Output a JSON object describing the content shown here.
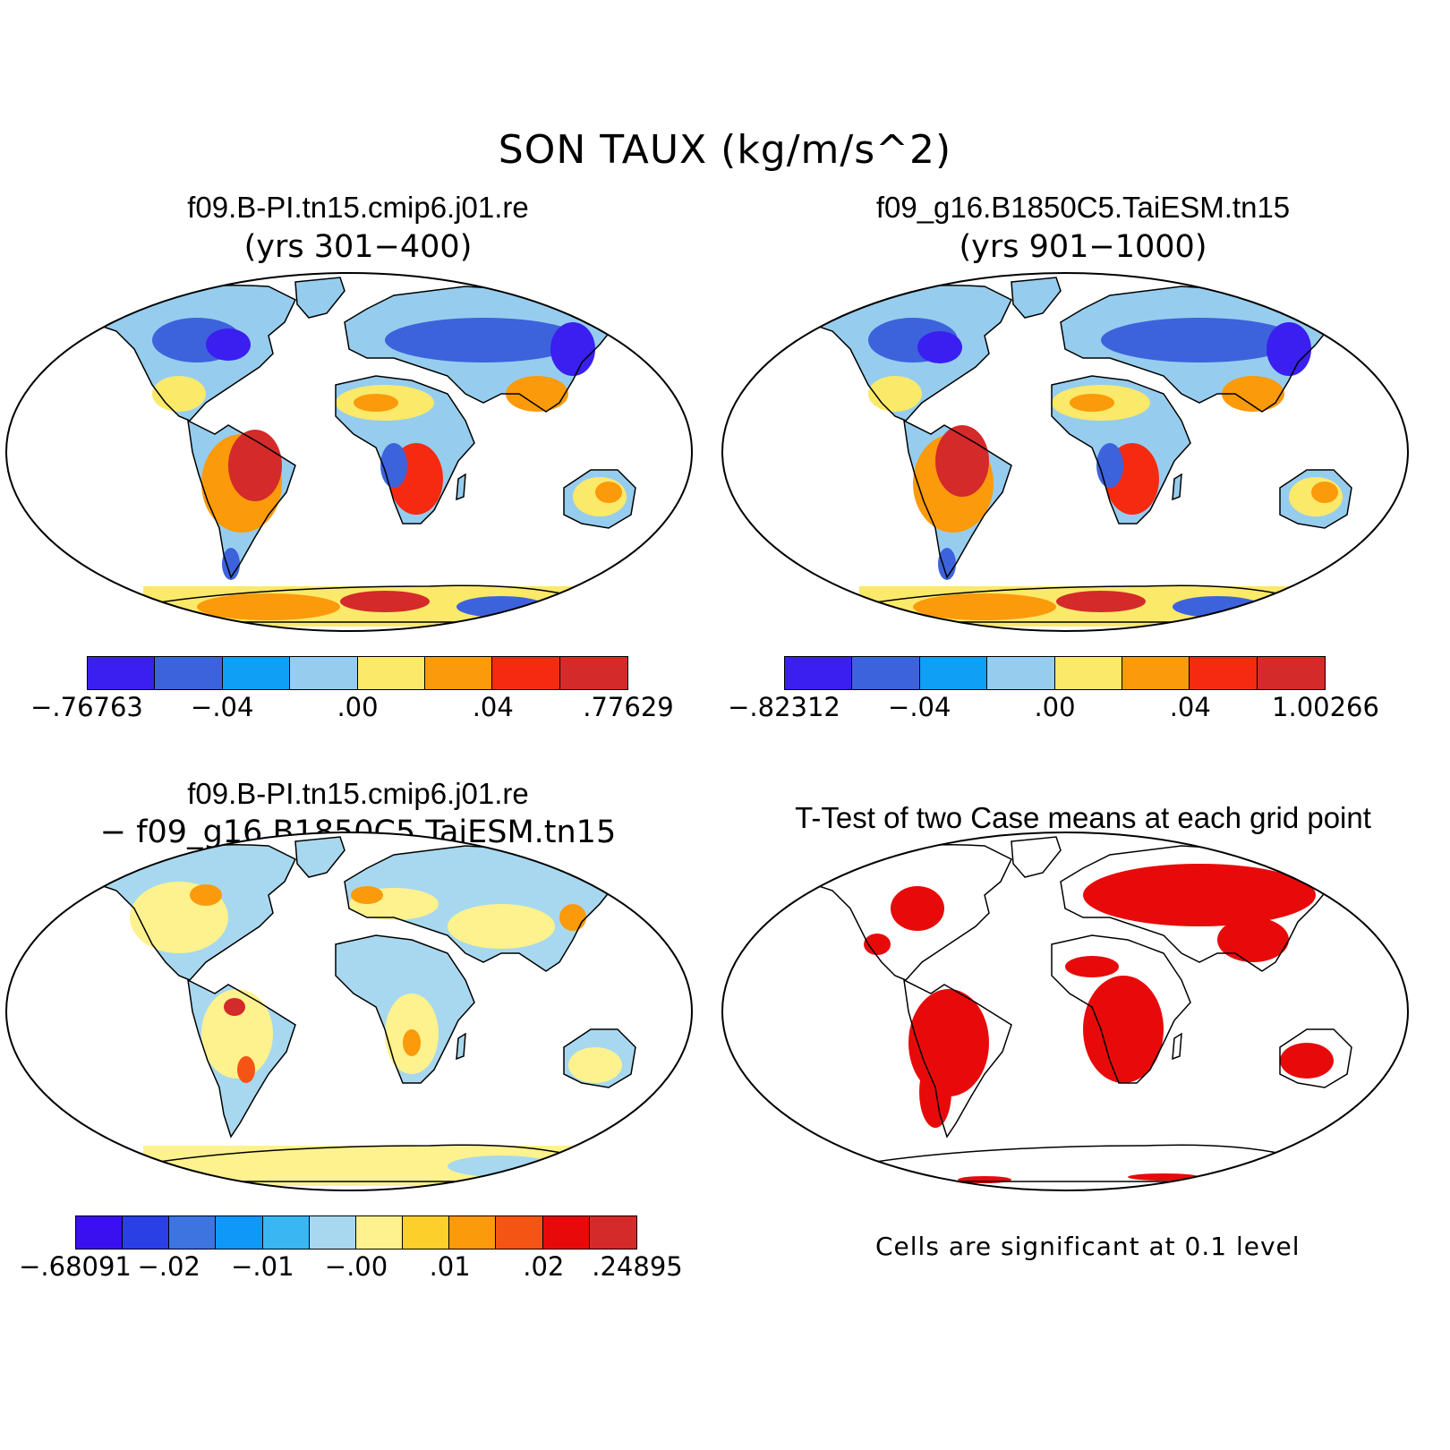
{
  "title": "SON TAUX (kg/m/s^2)",
  "panels": {
    "p1": {
      "title": "f09.B-PI.tn15.cmip6.j01.re",
      "subtitle": "(yrs 301−400)"
    },
    "p2": {
      "title": "f09_g16.B1850C5.TaiESM.tn15",
      "subtitle": "(yrs 901−1000)"
    },
    "p3": {
      "title": "f09.B-PI.tn15.cmip6.j01.re",
      "subtitle": "− f09_g16.B1850C5.TaiESM.tn15"
    },
    "p4": {
      "title": "T-Test of two Case means at each grid point",
      "note": "Cells are significant at 0.1 level"
    }
  },
  "colorbars": {
    "cb1": {
      "colors": [
        "#3a1ff0",
        "#3d63dc",
        "#0fa0f5",
        "#96cdee",
        "#fbe96a",
        "#fb9a0a",
        "#f52a10",
        "#d42a2a"
      ],
      "labels": [
        "−.76763",
        "−.04",
        ".00",
        ".04",
        ".77629"
      ]
    },
    "cb2": {
      "colors": [
        "#3a1ff0",
        "#3d63dc",
        "#0fa0f5",
        "#96cdee",
        "#fbe96a",
        "#fb9a0a",
        "#f52a10",
        "#d42a2a"
      ],
      "labels": [
        "−.82312",
        "−.04",
        ".00",
        ".04",
        "1.00266"
      ]
    },
    "cb3": {
      "colors": [
        "#3a10f0",
        "#2a3fe6",
        "#3d74e0",
        "#0f98f8",
        "#3ab6f2",
        "#a8d8ef",
        "#fdf28e",
        "#fccf2a",
        "#fb9a0a",
        "#f55514",
        "#e80a0a",
        "#d42a2a"
      ],
      "labels": [
        "−.68091",
        "−.02",
        "−.01",
        "−.00",
        ".01",
        ".02",
        ".24895"
      ]
    }
  },
  "map_colors": {
    "land_positive": "#fbe96a",
    "land_negative": "#96cdee",
    "strong_positive": "#d42a2a",
    "strong_negative": "#3d63dc",
    "significant": "#e80a0a"
  }
}
